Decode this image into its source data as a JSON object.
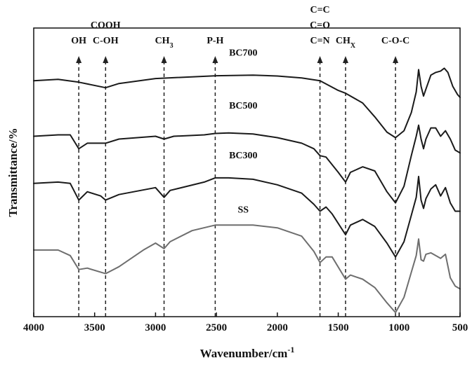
{
  "chart_data": {
    "type": "line",
    "title": "",
    "xlabel": "Wavenumber/cm",
    "xlabel_sup": "-1",
    "ylabel": "Transmittance/%",
    "xlim": [
      4000,
      500
    ],
    "ylim": [
      -0.2,
      10.2
    ],
    "x_reversed": true,
    "x_ticks": [
      4000,
      3500,
      3000,
      2500,
      2000,
      1500,
      1000,
      500
    ],
    "y_ticks_shown": false,
    "grid": false,
    "legend": "none",
    "colors": {
      "BC700": "#1a1a1a",
      "BC500": "#1a1a1a",
      "BC300": "#1a1a1a",
      "SS": "#6e6e6e",
      "markers": "#222222"
    },
    "band_markers": [
      {
        "x": 3630,
        "labels": [
          "OH"
        ]
      },
      {
        "x": 3410,
        "labels": [
          "COOH",
          "C-OH"
        ]
      },
      {
        "x": 2930,
        "labels": [
          "CH",
          "3"
        ],
        "subscript": true
      },
      {
        "x": 2510,
        "labels": [
          "P-H"
        ]
      },
      {
        "x": 1650,
        "labels": [
          "C=C",
          "C=O",
          "C=N"
        ]
      },
      {
        "x": 1440,
        "labels": [
          "CH",
          "X"
        ],
        "subscript": true
      },
      {
        "x": 1030,
        "labels": [
          "C-O-C"
        ]
      }
    ],
    "series": [
      {
        "name": "BC700",
        "label_x": 2280,
        "label_y": 9.2,
        "points": [
          [
            4000,
            8.3
          ],
          [
            3800,
            8.35
          ],
          [
            3630,
            8.25
          ],
          [
            3410,
            8.05
          ],
          [
            3300,
            8.2
          ],
          [
            3000,
            8.38
          ],
          [
            2500,
            8.48
          ],
          [
            2200,
            8.5
          ],
          [
            2000,
            8.47
          ],
          [
            1800,
            8.4
          ],
          [
            1650,
            8.3
          ],
          [
            1500,
            7.95
          ],
          [
            1440,
            7.85
          ],
          [
            1300,
            7.5
          ],
          [
            1200,
            7.0
          ],
          [
            1100,
            6.45
          ],
          [
            1030,
            6.25
          ],
          [
            960,
            6.5
          ],
          [
            900,
            7.15
          ],
          [
            860,
            7.9
          ],
          [
            840,
            8.7
          ],
          [
            820,
            8.1
          ],
          [
            800,
            7.75
          ],
          [
            780,
            8.0
          ],
          [
            740,
            8.5
          ],
          [
            700,
            8.6
          ],
          [
            660,
            8.65
          ],
          [
            630,
            8.75
          ],
          [
            600,
            8.6
          ],
          [
            560,
            8.1
          ],
          [
            520,
            7.8
          ],
          [
            500,
            7.7
          ]
        ]
      },
      {
        "name": "BC500",
        "label_x": 2280,
        "label_y": 7.3,
        "points": [
          [
            4000,
            6.3
          ],
          [
            3800,
            6.35
          ],
          [
            3700,
            6.35
          ],
          [
            3630,
            5.85
          ],
          [
            3560,
            6.05
          ],
          [
            3410,
            6.05
          ],
          [
            3300,
            6.2
          ],
          [
            3000,
            6.3
          ],
          [
            2930,
            6.2
          ],
          [
            2850,
            6.3
          ],
          [
            2600,
            6.35
          ],
          [
            2510,
            6.4
          ],
          [
            2400,
            6.42
          ],
          [
            2200,
            6.38
          ],
          [
            2000,
            6.25
          ],
          [
            1800,
            6.05
          ],
          [
            1700,
            5.85
          ],
          [
            1650,
            5.6
          ],
          [
            1600,
            5.55
          ],
          [
            1500,
            5.0
          ],
          [
            1440,
            4.65
          ],
          [
            1400,
            5.0
          ],
          [
            1300,
            5.2
          ],
          [
            1200,
            5.05
          ],
          [
            1100,
            4.3
          ],
          [
            1030,
            3.9
          ],
          [
            960,
            4.5
          ],
          [
            900,
            5.6
          ],
          [
            860,
            6.3
          ],
          [
            840,
            6.7
          ],
          [
            820,
            6.2
          ],
          [
            800,
            5.85
          ],
          [
            780,
            6.2
          ],
          [
            740,
            6.6
          ],
          [
            700,
            6.6
          ],
          [
            660,
            6.3
          ],
          [
            620,
            6.5
          ],
          [
            580,
            6.2
          ],
          [
            540,
            5.8
          ],
          [
            500,
            5.7
          ]
        ]
      },
      {
        "name": "BC300",
        "label_x": 2280,
        "label_y": 5.5,
        "points": [
          [
            4000,
            4.6
          ],
          [
            3800,
            4.65
          ],
          [
            3700,
            4.6
          ],
          [
            3630,
            4.0
          ],
          [
            3560,
            4.3
          ],
          [
            3450,
            4.15
          ],
          [
            3410,
            4.0
          ],
          [
            3300,
            4.2
          ],
          [
            3000,
            4.45
          ],
          [
            2930,
            4.1
          ],
          [
            2880,
            4.35
          ],
          [
            2600,
            4.65
          ],
          [
            2510,
            4.8
          ],
          [
            2400,
            4.8
          ],
          [
            2200,
            4.75
          ],
          [
            2000,
            4.55
          ],
          [
            1800,
            4.25
          ],
          [
            1700,
            3.85
          ],
          [
            1650,
            3.6
          ],
          [
            1600,
            3.75
          ],
          [
            1550,
            3.5
          ],
          [
            1440,
            2.75
          ],
          [
            1400,
            3.1
          ],
          [
            1300,
            3.3
          ],
          [
            1200,
            3.05
          ],
          [
            1100,
            2.45
          ],
          [
            1030,
            1.95
          ],
          [
            960,
            2.5
          ],
          [
            900,
            3.45
          ],
          [
            860,
            4.1
          ],
          [
            840,
            4.85
          ],
          [
            820,
            4.0
          ],
          [
            800,
            3.7
          ],
          [
            780,
            4.05
          ],
          [
            740,
            4.4
          ],
          [
            700,
            4.55
          ],
          [
            660,
            4.15
          ],
          [
            620,
            4.45
          ],
          [
            580,
            3.9
          ],
          [
            540,
            3.6
          ],
          [
            500,
            3.6
          ]
        ]
      },
      {
        "name": "SS",
        "label_x": 2280,
        "label_y": 3.55,
        "points": [
          [
            4000,
            2.2
          ],
          [
            3800,
            2.2
          ],
          [
            3700,
            2.0
          ],
          [
            3630,
            1.5
          ],
          [
            3560,
            1.55
          ],
          [
            3410,
            1.35
          ],
          [
            3300,
            1.6
          ],
          [
            3100,
            2.2
          ],
          [
            3000,
            2.45
          ],
          [
            2930,
            2.25
          ],
          [
            2880,
            2.5
          ],
          [
            2700,
            2.9
          ],
          [
            2510,
            3.1
          ],
          [
            2400,
            3.1
          ],
          [
            2200,
            3.1
          ],
          [
            2000,
            3.0
          ],
          [
            1800,
            2.7
          ],
          [
            1700,
            2.15
          ],
          [
            1650,
            1.75
          ],
          [
            1600,
            1.95
          ],
          [
            1550,
            1.95
          ],
          [
            1440,
            1.15
          ],
          [
            1400,
            1.3
          ],
          [
            1300,
            1.15
          ],
          [
            1200,
            0.85
          ],
          [
            1100,
            0.3
          ],
          [
            1030,
            -0.05
          ],
          [
            960,
            0.5
          ],
          [
            900,
            1.4
          ],
          [
            860,
            2.0
          ],
          [
            840,
            2.6
          ],
          [
            820,
            1.85
          ],
          [
            800,
            1.8
          ],
          [
            780,
            2.05
          ],
          [
            740,
            2.1
          ],
          [
            700,
            2.0
          ],
          [
            660,
            1.9
          ],
          [
            620,
            2.05
          ],
          [
            580,
            1.2
          ],
          [
            540,
            0.9
          ],
          [
            500,
            0.8
          ]
        ]
      }
    ]
  }
}
